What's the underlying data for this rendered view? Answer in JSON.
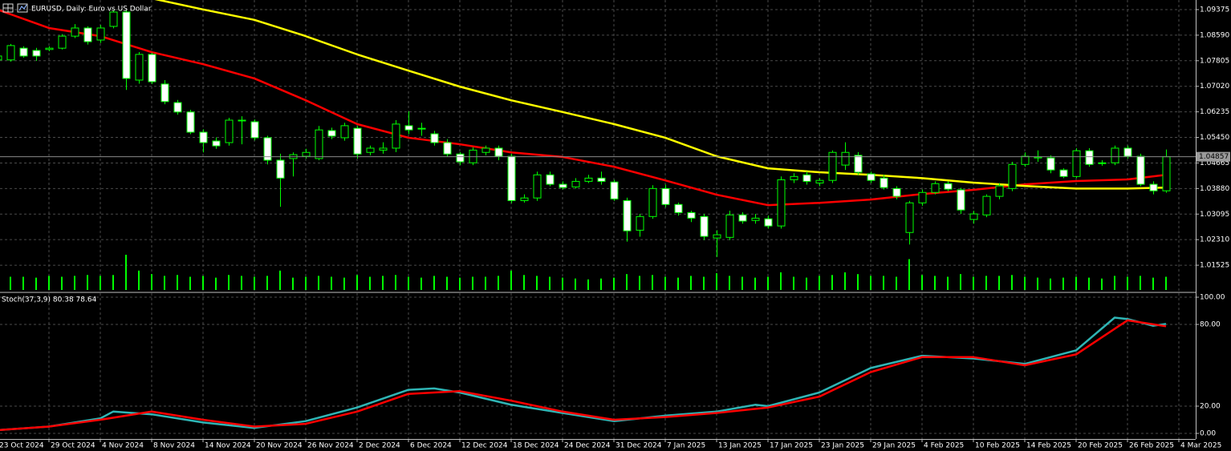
{
  "chart_data": [
    {
      "type": "candlestick",
      "title": "EURUSD, Daily: Euro vs US Dollar",
      "categories": [
        "23 Oct 2024",
        null,
        null,
        null,
        "29 Oct 2024",
        null,
        null,
        null,
        "4 Nov 2024",
        null,
        null,
        null,
        "8 Nov 2024",
        null,
        null,
        null,
        "14 Nov 2024",
        null,
        null,
        null,
        "20 Nov 2024",
        null,
        null,
        null,
        "26 Nov 2024",
        null,
        null,
        null,
        "2 Dec 2024",
        null,
        null,
        null,
        "6 Dec 2024",
        null,
        null,
        null,
        "12 Dec 2024",
        null,
        null,
        null,
        "18 Dec 2024",
        null,
        null,
        null,
        "24 Dec 2024",
        null,
        null,
        null,
        "31 Dec 2024",
        null,
        null,
        null,
        "7 Jan 2025",
        null,
        null,
        null,
        "13 Jan 2025",
        null,
        null,
        null,
        "17 Jan 2025",
        null,
        null,
        null,
        "23 Jan 2025",
        null,
        null,
        null,
        "29 Jan 2025",
        null,
        null,
        null,
        "4 Feb 2025",
        null,
        null,
        null,
        "10 Feb 2025",
        null,
        null,
        null,
        "14 Feb 2025",
        null,
        null,
        null,
        "20 Feb 2025",
        null,
        null,
        null,
        "26 Feb 2025",
        null,
        null,
        null,
        "4 Mar 2025"
      ],
      "open": [
        1.0783,
        1.0783,
        1.0819,
        1.0812,
        1.0815,
        1.0819,
        1.0856,
        1.0881,
        1.0844,
        1.0886,
        1.093,
        1.0721,
        1.08,
        1.0709,
        1.0652,
        1.0623,
        1.0561,
        1.0534,
        1.0529,
        1.0598,
        1.0593,
        1.0544,
        1.0475,
        1.048,
        1.0487,
        1.048,
        1.0566,
        1.0544,
        1.0573,
        1.0499,
        1.0506,
        1.0512,
        1.0581,
        1.0573,
        1.0556,
        1.0529,
        1.0494,
        1.0467,
        1.0499,
        1.0512,
        1.0487,
        1.0351,
        1.0359,
        1.043,
        1.0401,
        1.0393,
        1.041,
        1.042,
        1.0408,
        1.0351,
        1.026,
        1.0302,
        1.0388,
        1.0339,
        1.0314,
        1.0302,
        1.0236,
        1.0238,
        1.0307,
        1.029,
        1.0295,
        1.0273,
        1.0415,
        1.043,
        1.0405,
        1.0413,
        1.046,
        1.049,
        1.0433,
        1.042,
        1.0388,
        1.0253,
        1.0344,
        1.0376,
        1.0403,
        1.0384,
        1.0293,
        1.0307,
        1.0364,
        1.0388,
        1.0462,
        1.0482,
        1.0482,
        1.0445,
        1.0425,
        1.0504,
        1.0467,
        1.0467,
        1.0512,
        1.0487,
        1.0401,
        1.0381,
        null
      ],
      "high": [
        1.08,
        1.0832,
        1.0825,
        1.082,
        1.0825,
        1.0862,
        1.0893,
        1.0886,
        1.089,
        1.0936,
        1.0937,
        1.0807,
        1.0805,
        1.0721,
        1.066,
        1.063,
        1.057,
        1.0545,
        1.0605,
        1.061,
        1.06,
        1.055,
        1.0495,
        1.0499,
        1.051,
        1.058,
        1.0575,
        1.059,
        1.058,
        1.052,
        1.053,
        1.0598,
        1.0625,
        1.059,
        1.0565,
        1.054,
        1.05,
        1.0515,
        1.052,
        1.052,
        1.0495,
        1.037,
        1.044,
        1.044,
        1.041,
        1.042,
        1.043,
        1.044,
        1.0415,
        1.036,
        1.031,
        1.0398,
        1.04,
        1.0345,
        1.032,
        1.031,
        1.026,
        1.032,
        1.0315,
        1.031,
        1.0305,
        1.0425,
        1.0435,
        1.044,
        1.042,
        1.0505,
        1.053,
        1.05,
        1.044,
        1.043,
        1.0395,
        1.035,
        1.0385,
        1.041,
        1.041,
        1.039,
        1.032,
        1.037,
        1.0405,
        1.047,
        1.0499,
        1.0505,
        1.049,
        1.045,
        1.0512,
        1.0512,
        1.0475,
        1.052,
        1.052,
        1.0495,
        1.041,
        1.0508,
        null
      ],
      "low": [
        1.0778,
        1.0778,
        1.079,
        1.078,
        1.081,
        1.0815,
        1.085,
        1.083,
        1.0835,
        1.088,
        1.0691,
        1.071,
        1.0709,
        1.0647,
        1.0615,
        1.0555,
        1.0499,
        1.051,
        1.052,
        1.0524,
        1.0536,
        1.0462,
        1.0332,
        1.0425,
        1.048,
        1.0475,
        1.054,
        1.0535,
        1.048,
        1.049,
        1.0495,
        1.05,
        1.0555,
        1.055,
        1.052,
        1.0485,
        1.046,
        1.046,
        1.049,
        1.0475,
        1.0343,
        1.0345,
        1.035,
        1.0395,
        1.0385,
        1.0388,
        1.0405,
        1.04,
        1.035,
        1.0225,
        1.024,
        1.0295,
        1.033,
        1.0305,
        1.0285,
        1.023,
        1.0178,
        1.023,
        1.028,
        1.028,
        1.0265,
        1.0265,
        1.0405,
        1.04,
        1.0395,
        1.0405,
        1.0445,
        1.043,
        1.0405,
        1.0385,
        1.0355,
        1.0216,
        1.0335,
        1.037,
        1.038,
        1.031,
        1.028,
        1.03,
        1.0355,
        1.038,
        1.0455,
        1.047,
        1.0435,
        1.042,
        1.042,
        1.0455,
        1.0458,
        1.046,
        1.048,
        1.0395,
        1.037,
        1.0375,
        null
      ],
      "close": [
        1.0795,
        1.0827,
        1.0795,
        1.0795,
        1.0819,
        1.0856,
        1.0881,
        1.0839,
        1.0881,
        1.093,
        1.0726,
        1.08,
        1.0716,
        1.0655,
        1.0623,
        1.0561,
        1.0529,
        1.0519,
        1.0598,
        1.0596,
        1.0544,
        1.0475,
        1.042,
        1.0492,
        1.0499,
        1.0568,
        1.0549,
        1.0581,
        1.0494,
        1.0512,
        1.0512,
        1.0586,
        1.0568,
        1.0571,
        1.0529,
        1.0494,
        1.047,
        1.0506,
        1.0512,
        1.0487,
        1.0351,
        1.0359,
        1.043,
        1.0401,
        1.0391,
        1.041,
        1.042,
        1.041,
        1.0356,
        1.0258,
        1.0302,
        1.0388,
        1.0339,
        1.0314,
        1.0297,
        1.0241,
        1.0246,
        1.0307,
        1.0288,
        1.0297,
        1.0273,
        1.0415,
        1.0425,
        1.041,
        1.0413,
        1.0499,
        1.0499,
        1.0438,
        1.0413,
        1.0391,
        1.0364,
        1.0344,
        1.0376,
        1.0403,
        1.0386,
        1.0322,
        1.031,
        1.0364,
        1.0396,
        1.0462,
        1.0487,
        1.0485,
        1.0445,
        1.0425,
        1.0504,
        1.0462,
        1.0465,
        1.0512,
        1.0487,
        1.0401,
        1.0381,
        1.04857,
        null
      ],
      "volume": [
        14,
        15,
        15,
        14,
        16,
        15,
        16,
        17,
        16,
        17,
        40,
        22,
        18,
        16,
        17,
        15,
        16,
        14,
        17,
        16,
        15,
        16,
        22,
        14,
        15,
        16,
        15,
        14,
        17,
        15,
        16,
        17,
        15,
        14,
        16,
        15,
        14,
        15,
        15,
        16,
        22,
        17,
        16,
        15,
        14,
        13,
        12,
        13,
        14,
        18,
        16,
        17,
        15,
        14,
        16,
        15,
        19,
        16,
        15,
        14,
        15,
        20,
        15,
        14,
        16,
        17,
        20,
        18,
        16,
        16,
        15,
        35,
        17,
        16,
        15,
        18,
        15,
        16,
        16,
        17,
        15,
        14,
        13,
        14,
        15,
        14,
        13,
        16,
        15,
        16,
        14,
        15,
        null
      ],
      "up_color": "#000000",
      "down_color": "#ffffff",
      "outline_color": "#00ff00",
      "volume_color": "#00ff00",
      "series": [
        {
          "color": "#ff0000",
          "x": [
            0,
            4,
            8,
            12,
            16,
            20,
            24,
            28,
            32,
            36,
            40,
            44,
            48,
            52,
            56,
            60,
            64,
            68,
            72,
            76,
            80,
            84,
            88,
            91
          ],
          "values": [
            1.09375,
            1.0881,
            1.0856,
            1.0807,
            1.077,
            1.0726,
            1.0659,
            1.0586,
            1.0544,
            1.0524,
            1.0499,
            1.0485,
            1.0455,
            1.0413,
            1.0369,
            1.0337,
            1.0344,
            1.0354,
            1.0371,
            1.0384,
            1.0401,
            1.0411,
            1.0416,
            1.043
          ]
        },
        {
          "color": "#ffff00",
          "x": [
            12,
            16,
            20,
            24,
            28,
            32,
            36,
            40,
            44,
            48,
            52,
            56,
            60,
            64,
            68,
            72,
            76,
            80,
            84,
            88,
            91
          ],
          "values": [
            1.0972,
            1.0938,
            1.0906,
            1.0856,
            1.08,
            1.075,
            1.0701,
            1.0659,
            1.0623,
            1.0586,
            1.0544,
            1.0487,
            1.045,
            1.0438,
            1.043,
            1.042,
            1.0406,
            1.0396,
            1.0388,
            1.0388,
            1.0391
          ]
        }
      ],
      "last_price": 1.04857,
      "ylim": [
        1.00715,
        1.0967
      ],
      "yticks": [
        1.09375,
        {
          "value": 1.0859,
          "label": "1.08590"
        },
        1.07805,
        {
          "value": 1.0702,
          "label": "1.07020"
        },
        1.06235,
        {
          "value": 1.0545,
          "label": "1.05450"
        },
        1.04665,
        {
          "value": 1.0388,
          "label": "1.03880"
        },
        1.03095,
        {
          "value": 1.0231,
          "label": "1.02310"
        },
        1.01525
      ],
      "grid": true
    },
    {
      "type": "line",
      "title": "Stoch(37,3,9) 80.38 78.64",
      "series": [
        {
          "color": "#2fb5b5",
          "x": [
            0,
            4,
            8,
            9,
            12,
            16,
            20,
            24,
            28,
            32,
            34,
            36,
            40,
            44,
            48,
            52,
            56,
            59,
            60,
            64,
            68,
            72,
            76,
            80,
            84,
            87,
            88,
            90,
            91
          ],
          "values": [
            2.4,
            5,
            11,
            16,
            14,
            8,
            4,
            9,
            19,
            32,
            33,
            30,
            21,
            15,
            9,
            13,
            16,
            21,
            20,
            30,
            48,
            57,
            55,
            51,
            61,
            85,
            84,
            79,
            80.38
          ]
        },
        {
          "color": "#ff0000",
          "x": [
            0,
            4,
            8,
            12,
            16,
            20,
            24,
            28,
            32,
            36,
            40,
            44,
            48,
            52,
            56,
            60,
            64,
            68,
            72,
            76,
            80,
            84,
            88,
            91
          ],
          "values": [
            2.4,
            5,
            10,
            16,
            10,
            5,
            7,
            16,
            29,
            31,
            24,
            16,
            10,
            12,
            15,
            19,
            27,
            45,
            56,
            56,
            50,
            58,
            83,
            78.64
          ]
        }
      ],
      "ylim": [
        -4.12,
        102.94
      ],
      "yticks": [
        {
          "value": 100,
          "label": "100.00"
        },
        {
          "value": 80,
          "label": "80.00"
        },
        {
          "value": 20,
          "label": "20.00"
        },
        {
          "value": 0,
          "label": "0.00"
        }
      ],
      "grid": true
    }
  ]
}
